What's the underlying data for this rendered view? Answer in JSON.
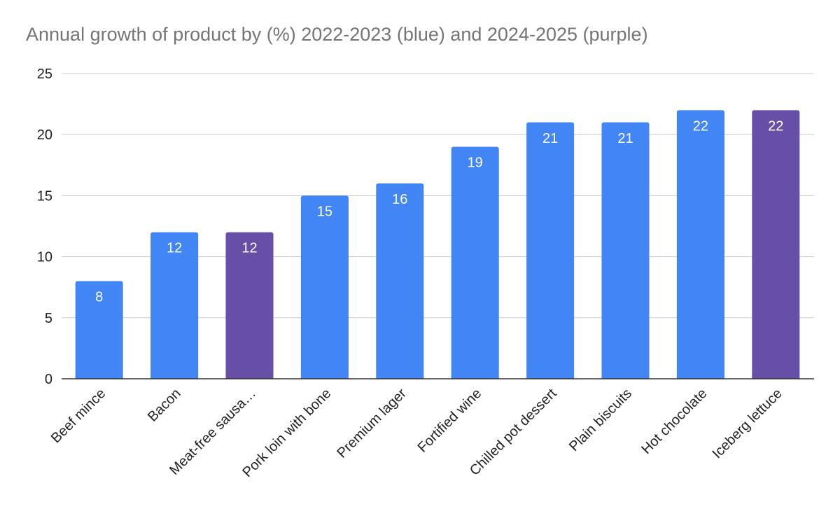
{
  "chart_data": {
    "type": "bar",
    "title": "Annual growth of product by (%) 2022-2023 (blue) and 2024-2025 (purple)",
    "xlabel": "",
    "ylabel": "",
    "ylim": [
      0,
      25
    ],
    "yticks": [
      "0",
      "5",
      "10",
      "15",
      "20",
      "25"
    ],
    "categories": [
      "Beef mince",
      "Bacon",
      "Meat-free sausa…",
      "Pork loin with bone",
      "Premium lager",
      "Fortified wine",
      "Chilled pot dessert",
      "Plain biscuits",
      "Hot chocolate",
      "Iceberg lettuce"
    ],
    "values": [
      8,
      12,
      12,
      15,
      16,
      19,
      21,
      21,
      22,
      22
    ],
    "bar_colors": [
      "#4285f4",
      "#4285f4",
      "#674ea7",
      "#4285f4",
      "#4285f4",
      "#4285f4",
      "#4285f4",
      "#4285f4",
      "#4285f4",
      "#674ea7"
    ],
    "data_labels": true,
    "grid": true,
    "legend": "none"
  },
  "colors": {
    "blue": "#4285f4",
    "purple": "#674ea7",
    "gridline": "#cccccc",
    "axis": "#333333",
    "title": "#757575",
    "text": "#222222"
  }
}
